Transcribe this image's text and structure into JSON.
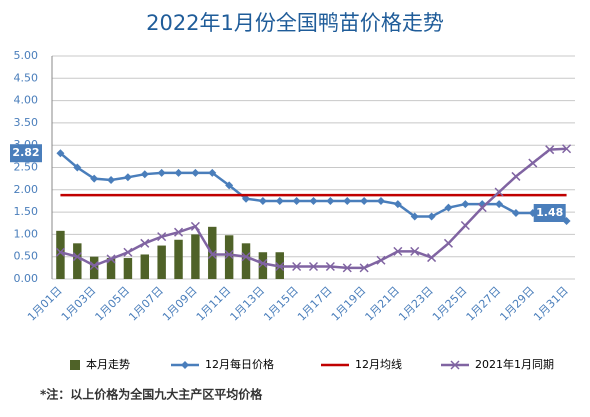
{
  "chart_data": {
    "type": "combo",
    "title": "2022年1月份全国鸭苗价格走势",
    "categories": [
      "1月01日",
      null,
      "1月03日",
      null,
      "1月05日",
      null,
      "1月07日",
      null,
      "1月09日",
      null,
      "1月11日",
      null,
      "1月13日",
      null,
      "1月15日",
      null,
      "1月17日",
      null,
      "1月19日",
      null,
      "1月21日",
      null,
      "1月23日",
      null,
      "1月25日",
      null,
      "1月27日",
      null,
      "1月29日",
      null,
      "1月31日"
    ],
    "series": [
      {
        "name": "本月走势",
        "type": "bar",
        "color": "#4f6228",
        "values": [
          1.08,
          0.8,
          0.5,
          0.47,
          0.47,
          0.55,
          0.75,
          0.88,
          1.0,
          1.17,
          0.98,
          0.8,
          0.6,
          0.6,
          null,
          null,
          null,
          null,
          null,
          null,
          null,
          null,
          null,
          null,
          null,
          null,
          null,
          null,
          null,
          null,
          null
        ]
      },
      {
        "name": "12月每日价格",
        "type": "line",
        "marker": "diamond",
        "color": "#4a7ebb",
        "values": [
          2.82,
          2.5,
          2.25,
          2.22,
          2.28,
          2.35,
          2.38,
          2.38,
          2.38,
          2.38,
          2.1,
          1.8,
          1.75,
          1.75,
          1.75,
          1.75,
          1.75,
          1.75,
          1.75,
          1.75,
          1.68,
          1.4,
          1.4,
          1.6,
          1.68,
          1.68,
          1.68,
          1.48,
          1.48,
          1.48,
          1.3
        ],
        "value_labels": [
          "2.82",
          null,
          null,
          null,
          null,
          null,
          null,
          null,
          null,
          null,
          null,
          null,
          null,
          null,
          null,
          null,
          null,
          null,
          null,
          null,
          null,
          null,
          null,
          null,
          null,
          null,
          null,
          null,
          null,
          "1.48",
          null
        ]
      },
      {
        "name": "12月均线",
        "type": "line",
        "marker": "none",
        "color": "#c00000",
        "values": [
          1.88,
          1.88,
          1.88,
          1.88,
          1.88,
          1.88,
          1.88,
          1.88,
          1.88,
          1.88,
          1.88,
          1.88,
          1.88,
          1.88,
          1.88,
          1.88,
          1.88,
          1.88,
          1.88,
          1.88,
          1.88,
          1.88,
          1.88,
          1.88,
          1.88,
          1.88,
          1.88,
          1.88,
          1.88,
          1.88,
          1.88
        ]
      },
      {
        "name": "2021年1月同期",
        "type": "line",
        "marker": "x",
        "color": "#8064a2",
        "values": [
          0.6,
          0.5,
          0.3,
          0.45,
          0.6,
          0.8,
          0.95,
          1.05,
          1.18,
          0.55,
          0.55,
          0.5,
          0.35,
          0.28,
          0.28,
          0.28,
          0.28,
          0.25,
          0.25,
          0.42,
          0.62,
          0.62,
          0.48,
          0.8,
          1.2,
          1.6,
          1.95,
          2.3,
          2.6,
          2.9,
          2.92
        ]
      }
    ],
    "ylim": [
      0,
      5
    ],
    "yticks": [
      {
        "value": 0,
        "label": "0.00"
      },
      {
        "value": 0.5,
        "label": "0.50"
      },
      {
        "value": 1,
        "label": "1.00"
      },
      {
        "value": 1.5,
        "label": "1.50"
      },
      {
        "value": 2,
        "label": "2.00"
      },
      {
        "value": 2.5,
        "label": "2.50"
      },
      {
        "value": 3,
        "label": "3.00"
      },
      {
        "value": 3.5,
        "label": "3.50"
      },
      {
        "value": 4,
        "label": "4.00"
      },
      {
        "value": 4.5,
        "label": "4.50"
      },
      {
        "value": 5,
        "label": "5.00"
      }
    ],
    "grid": true,
    "legend": "bottom",
    "note": "*注：以上价格为全国九大主产区平均价格"
  }
}
